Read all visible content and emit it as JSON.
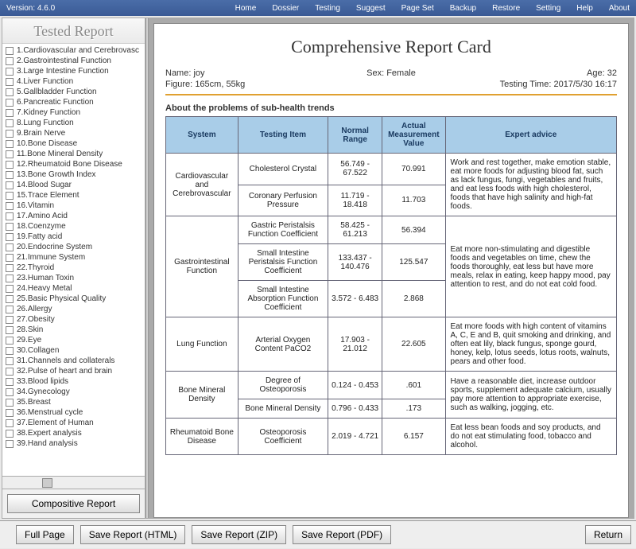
{
  "topbar": {
    "version": "Version: 4.6.0",
    "menus": [
      "Home",
      "Dossier",
      "Testing",
      "Suggest",
      "Page Set",
      "Backup",
      "Restore",
      "Setting",
      "Help",
      "About"
    ]
  },
  "sidebar": {
    "title": "Tested Report",
    "button": "Compositive Report",
    "items": [
      "1.Cardiovascular and Cerebrovasc",
      "2.Gastrointestinal Function",
      "3.Large Intestine Function",
      "4.Liver Function",
      "5.Gallbladder Function",
      "6.Pancreatic Function",
      "7.Kidney Function",
      "8.Lung Function",
      "9.Brain Nerve",
      "10.Bone Disease",
      "11.Bone Mineral Density",
      "12.Rheumatoid Bone Disease",
      "13.Bone Growth Index",
      "14.Blood Sugar",
      "15.Trace Element",
      "16.Vitamin",
      "17.Amino Acid",
      "18.Coenzyme",
      "19.Fatty acid",
      "20.Endocrine System",
      "21.Immune System",
      "22.Thyroid",
      "23.Human Toxin",
      "24.Heavy Metal",
      "25.Basic Physical Quality",
      "26.Allergy",
      "27.Obesity",
      "28.Skin",
      "29.Eye",
      "30.Collagen",
      "31.Channels and collaterals",
      "32.Pulse of heart and brain",
      "33.Blood lipids",
      "34.Gynecology",
      "35.Breast",
      "36.Menstrual cycle",
      "37.Element of Human",
      "38.Expert analysis",
      "39.Hand analysis"
    ]
  },
  "report": {
    "title": "Comprehensive Report Card",
    "meta": {
      "name_label": "Name:",
      "name": "joy",
      "sex_label": "Sex:",
      "sex": "Female",
      "age_label": "Age:",
      "age": "32",
      "figure_label": "Figure:",
      "figure": "165cm, 55kg",
      "time_label": "Testing Time:",
      "time": "2017/5/30 16:17"
    },
    "section": "About the problems of sub-health trends",
    "columns": [
      "System",
      "Testing Item",
      "Normal Range",
      "Actual Measurement Value",
      "Expert advice"
    ],
    "groups": [
      {
        "system": "Cardiovascular and Cerebrovascular",
        "advice": "Work and rest together, make emotion stable, eat more foods for adjusting blood fat, such as lack fungus, fungi, vegetables and fruits, and eat less foods with high cholesterol, foods that have high salinity and high-fat foods.",
        "rows": [
          {
            "item": "Cholesterol Crystal",
            "range": "56.749 - 67.522",
            "value": "70.991"
          },
          {
            "item": "Coronary Perfusion Pressure",
            "range": "11.719 - 18.418",
            "value": "11.703"
          }
        ]
      },
      {
        "system": "Gastrointestinal Function",
        "advice": "Eat more non-stimulating and digestible foods and vegetables on time, chew the foods thoroughly, eat less but have more meals, relax in eating, keep happy mood, pay attention to rest, and do not eat cold food.",
        "rows": [
          {
            "item": "Gastric Peristalsis Function Coefficient",
            "range": "58.425 - 61.213",
            "value": "56.394"
          },
          {
            "item": "Small Intestine Peristalsis Function Coefficient",
            "range": "133.437 - 140.476",
            "value": "125.547"
          },
          {
            "item": "Small Intestine Absorption Function Coefficient",
            "range": "3.572 - 6.483",
            "value": "2.868"
          }
        ]
      },
      {
        "system": "Lung Function",
        "advice": "Eat more foods with high content of vitamins A, C, E and B, quit smoking and drinking, and often eat lily, black fungus, sponge gourd, honey, kelp, lotus seeds, lotus roots, walnuts, pears and other food.",
        "rows": [
          {
            "item": "Arterial Oxygen Content PaCO2",
            "range": "17.903 - 21.012",
            "value": "22.605"
          }
        ]
      },
      {
        "system": "Bone Mineral Density",
        "advice": "Have a reasonable diet, increase outdoor sports, supplement adequate calcium, usually pay more attention to appropriate exercise, such as walking, jogging, etc.",
        "rows": [
          {
            "item": "Degree of Osteoporosis",
            "range": "0.124 - 0.453",
            "value": ".601"
          },
          {
            "item": "Bone Mineral Density",
            "range": "0.796 - 0.433",
            "value": ".173"
          }
        ]
      },
      {
        "system": "Rheumatoid Bone Disease",
        "advice": "Eat less bean foods and soy products, and do not eat stimulating food, tobacco and alcohol.",
        "rows": [
          {
            "item": "Osteoporosis Coefficient",
            "range": "2.019 - 4.721",
            "value": "6.157"
          }
        ]
      }
    ]
  },
  "bottom": {
    "full": "Full Page",
    "html": "Save Report (HTML)",
    "zip": "Save Report (ZIP)",
    "pdf": "Save Report (PDF)",
    "ret": "Return"
  }
}
